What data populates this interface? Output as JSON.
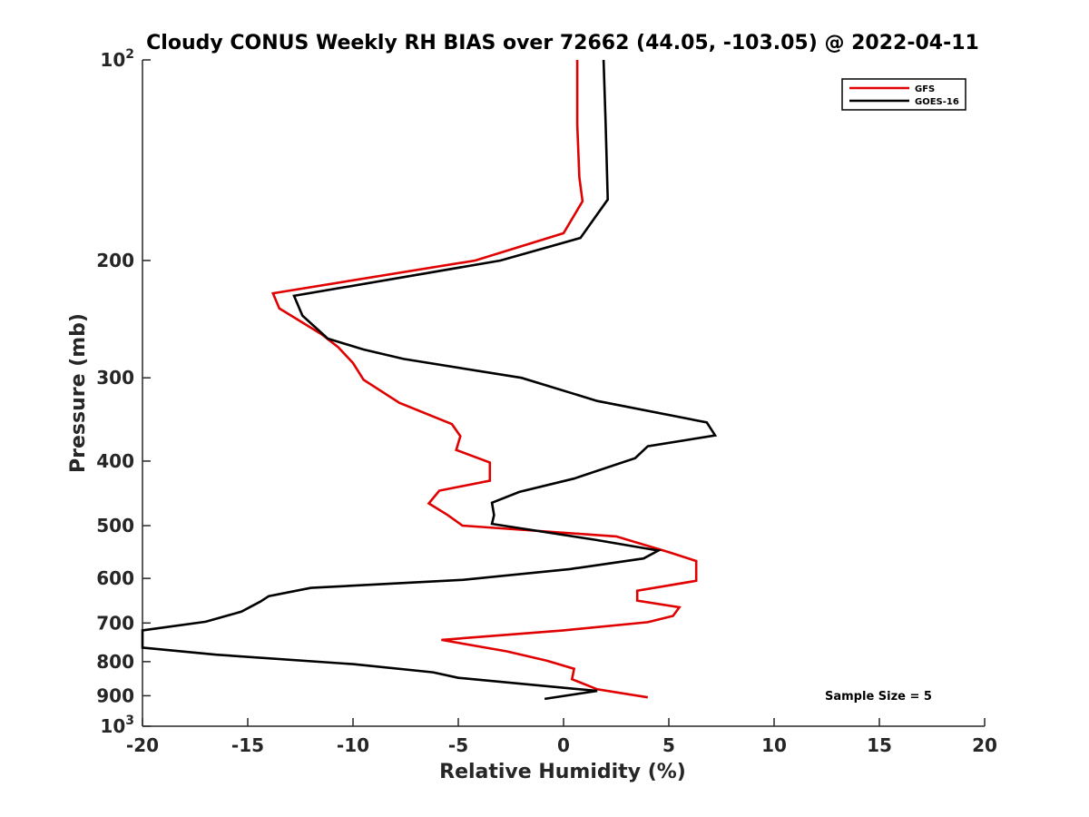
{
  "chart_data": {
    "type": "line",
    "title": "Cloudy CONUS Weekly RH BIAS over 72662 (44.05, -103.05) @ 2022-04-11",
    "xlabel": "Relative Humidity (%)",
    "ylabel": "Pressure (mb)",
    "xlim": [
      -20,
      20
    ],
    "ylim": [
      100,
      1000
    ],
    "y_scale": "log",
    "y_reversed": true,
    "grid": false,
    "legend_position": "top-right",
    "x_ticks": [
      "-20",
      "-15",
      "-10",
      "-5",
      "0",
      "5",
      "10",
      "15",
      "20"
    ],
    "y_ticks": [
      {
        "value": 100,
        "base": "10",
        "exp": "2"
      },
      {
        "value": 200,
        "label": "200"
      },
      {
        "value": 300,
        "label": "300"
      },
      {
        "value": 400,
        "label": "400"
      },
      {
        "value": 500,
        "label": "500"
      },
      {
        "value": 600,
        "label": "600"
      },
      {
        "value": 700,
        "label": "700"
      },
      {
        "value": 800,
        "label": "800"
      },
      {
        "value": 900,
        "label": "900"
      },
      {
        "value": 1000,
        "base": "10",
        "exp": "3"
      }
    ],
    "annotation": "Sample Size = 5",
    "series": [
      {
        "name": "GFS",
        "color": "#e00000",
        "points": [
          [
            0.65,
            100
          ],
          [
            0.65,
            125
          ],
          [
            0.75,
            150
          ],
          [
            0.9,
            163
          ],
          [
            0,
            182
          ],
          [
            -4.2,
            200
          ],
          [
            -13.8,
            224
          ],
          [
            -13.5,
            236
          ],
          [
            -11.5,
            258
          ],
          [
            -10.7,
            270
          ],
          [
            -10,
            285
          ],
          [
            -9.5,
            302
          ],
          [
            -7.8,
            327
          ],
          [
            -5.3,
            352
          ],
          [
            -4.9,
            367
          ],
          [
            -5.1,
            385
          ],
          [
            -3.5,
            402
          ],
          [
            -3.5,
            428
          ],
          [
            -5.9,
            443
          ],
          [
            -6.4,
            463
          ],
          [
            -5.5,
            482
          ],
          [
            -4.8,
            500
          ],
          [
            2.5,
            519
          ],
          [
            5,
            548
          ],
          [
            6.3,
            565
          ],
          [
            6.3,
            605
          ],
          [
            3.5,
            626
          ],
          [
            3.5,
            648
          ],
          [
            5.5,
            663
          ],
          [
            5.2,
            683
          ],
          [
            4,
            698
          ],
          [
            0,
            718
          ],
          [
            -5.8,
            742
          ],
          [
            -2.7,
            772
          ],
          [
            -0.8,
            797
          ],
          [
            0.5,
            820
          ],
          [
            0.4,
            850
          ],
          [
            1.6,
            880
          ],
          [
            4,
            905
          ]
        ]
      },
      {
        "name": "GOES-16",
        "color": "#000000",
        "points": [
          [
            1.9,
            100
          ],
          [
            2,
            125
          ],
          [
            2.1,
            162
          ],
          [
            0.8,
            185
          ],
          [
            -3,
            200
          ],
          [
            -12.8,
            226
          ],
          [
            -12.4,
            242
          ],
          [
            -11.2,
            262
          ],
          [
            -9.5,
            272
          ],
          [
            -7.6,
            281
          ],
          [
            -2,
            300
          ],
          [
            1.6,
            325
          ],
          [
            6.8,
            350
          ],
          [
            7.2,
            366
          ],
          [
            4,
            380
          ],
          [
            3.4,
            396
          ],
          [
            0.5,
            425
          ],
          [
            -2.1,
            445
          ],
          [
            -3.4,
            462
          ],
          [
            -3.3,
            482
          ],
          [
            -3.4,
            497
          ],
          [
            1.5,
            525
          ],
          [
            4.5,
            545
          ],
          [
            3.8,
            560
          ],
          [
            0.3,
            581
          ],
          [
            -4.8,
            603
          ],
          [
            -12,
            620
          ],
          [
            -14,
            638
          ],
          [
            -14.4,
            650
          ],
          [
            -15.3,
            673
          ],
          [
            -17,
            697
          ],
          [
            -20,
            718
          ],
          [
            -20,
            762
          ],
          [
            -16.5,
            781
          ],
          [
            -10,
            807
          ],
          [
            -6.2,
            830
          ],
          [
            -5,
            846
          ],
          [
            1.6,
            885
          ],
          [
            -0.9,
            910
          ]
        ]
      }
    ]
  }
}
